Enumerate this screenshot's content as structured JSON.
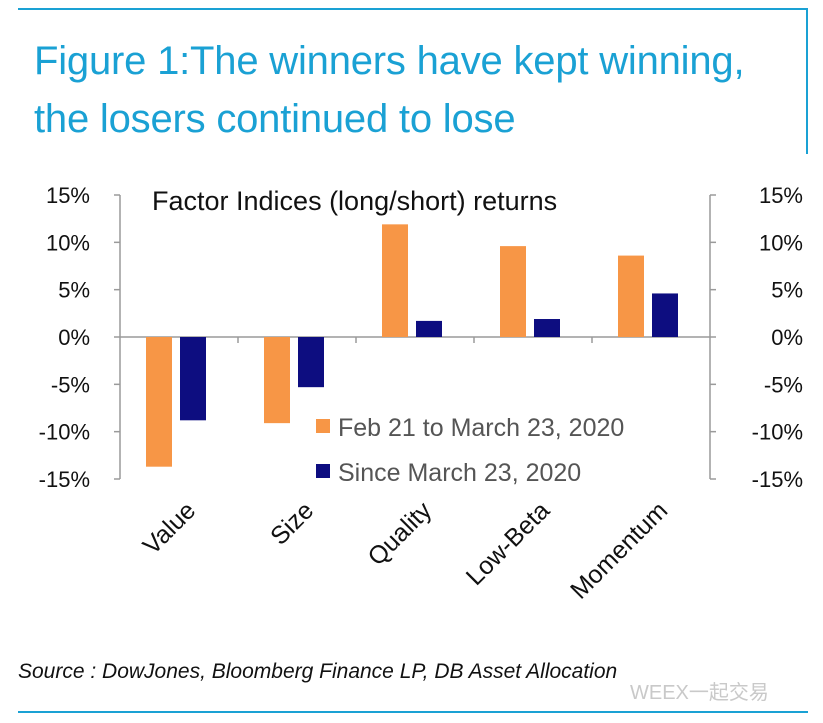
{
  "figure": {
    "title": "Figure 1:The winners have kept winning, the losers continued to lose",
    "source": "Source : DowJones, Bloomberg Finance LP, DB Asset Allocation",
    "watermark": "WEEX一起交易"
  },
  "colors": {
    "accent": "#1aa1d4",
    "series_1": "#f79646",
    "series_2": "#0d0d80",
    "axis": "#9a9a9a",
    "text": "#111111"
  },
  "chart_data": {
    "type": "bar",
    "title": "Factor Indices (long/short) returns",
    "categories": [
      "Value",
      "Size",
      "Quality",
      "Low-Beta",
      "Momentum"
    ],
    "series": [
      {
        "name": "Feb 21 to March 23, 2020",
        "values": [
          -13.7,
          -9.1,
          11.9,
          9.6,
          8.6
        ]
      },
      {
        "name": "Since March 23, 2020",
        "values": [
          -8.8,
          -5.3,
          1.7,
          1.9,
          4.6
        ]
      }
    ],
    "ylim": [
      -15,
      15
    ],
    "yticks": [
      15,
      10,
      5,
      0,
      -5,
      -10,
      -15
    ],
    "ytick_labels": [
      "15%",
      "10%",
      "5%",
      "0%",
      "-5%",
      "-10%",
      "-15%"
    ],
    "dual_axis": true,
    "legend_position": "lower-right",
    "grid": false
  }
}
